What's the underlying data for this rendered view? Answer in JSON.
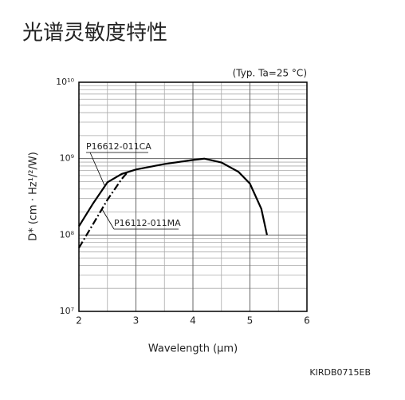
{
  "chart_data": {
    "type": "line",
    "title": "光谱灵敏度特性",
    "condition": "(Typ. Ta=25 °C)",
    "xlabel": "Wavelength (μm)",
    "ylabel": "D* (cm · Hz¹/²/W)",
    "code": "KIRDB0715EB",
    "log_y": true,
    "grid": true,
    "xlim": [
      2,
      6
    ],
    "xticks": [
      2,
      3,
      4,
      5,
      6
    ],
    "ylim": [
      10000000,
      10000000000
    ],
    "yticks": [
      {
        "value": 10000000,
        "label": "10⁷"
      },
      {
        "value": 100000000,
        "label": "10⁸"
      },
      {
        "value": 1000000000,
        "label": "10⁹"
      },
      {
        "value": 10000000000,
        "label": "10¹⁰"
      }
    ],
    "series": [
      {
        "name": "P16612-011CA",
        "style": "solid",
        "color": "#000000",
        "x": [
          2.0,
          2.25,
          2.5,
          2.75,
          3.0,
          3.5,
          4.0,
          4.2,
          4.5,
          4.8,
          5.0,
          5.2,
          5.3
        ],
        "values": [
          130000000,
          260000000,
          490000000,
          630000000,
          720000000,
          850000000,
          960000000,
          1000000000,
          890000000,
          670000000,
          470000000,
          220000000,
          100000000
        ]
      },
      {
        "name": "P16112-011MA",
        "style": "dashdot",
        "color": "#000000",
        "x": [
          2.0,
          2.25,
          2.5,
          2.75,
          2.85
        ],
        "values": [
          68000000,
          140000000,
          290000000,
          540000000,
          660000000
        ]
      }
    ]
  }
}
